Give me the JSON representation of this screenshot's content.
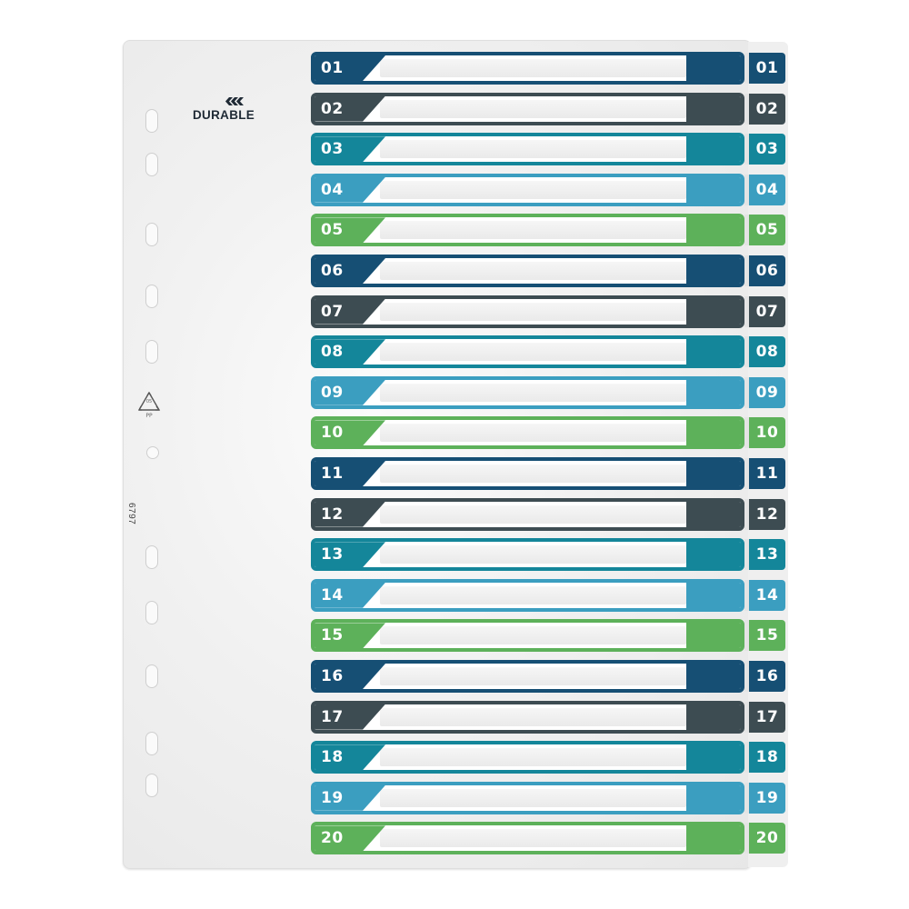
{
  "brand": {
    "name": "DURABLE"
  },
  "recycle": {
    "code": "05",
    "material": "PP"
  },
  "part_number": "6797",
  "colors": {
    "navy": "#164f74",
    "slate": "#3d4c52",
    "teal": "#14869a",
    "sky": "#3b9ec0",
    "green": "#5db15a"
  },
  "tabs": [
    {
      "label": "01",
      "color": "#164f74"
    },
    {
      "label": "02",
      "color": "#3d4c52"
    },
    {
      "label": "03",
      "color": "#14869a"
    },
    {
      "label": "04",
      "color": "#3b9ec0"
    },
    {
      "label": "05",
      "color": "#5db15a"
    },
    {
      "label": "06",
      "color": "#164f74"
    },
    {
      "label": "07",
      "color": "#3d4c52"
    },
    {
      "label": "08",
      "color": "#14869a"
    },
    {
      "label": "09",
      "color": "#3b9ec0"
    },
    {
      "label": "10",
      "color": "#5db15a"
    },
    {
      "label": "11",
      "color": "#164f74"
    },
    {
      "label": "12",
      "color": "#3d4c52"
    },
    {
      "label": "13",
      "color": "#14869a"
    },
    {
      "label": "14",
      "color": "#3b9ec0"
    },
    {
      "label": "15",
      "color": "#5db15a"
    },
    {
      "label": "16",
      "color": "#164f74"
    },
    {
      "label": "17",
      "color": "#3d4c52"
    },
    {
      "label": "18",
      "color": "#14869a"
    },
    {
      "label": "19",
      "color": "#3b9ec0"
    },
    {
      "label": "20",
      "color": "#5db15a"
    }
  ]
}
